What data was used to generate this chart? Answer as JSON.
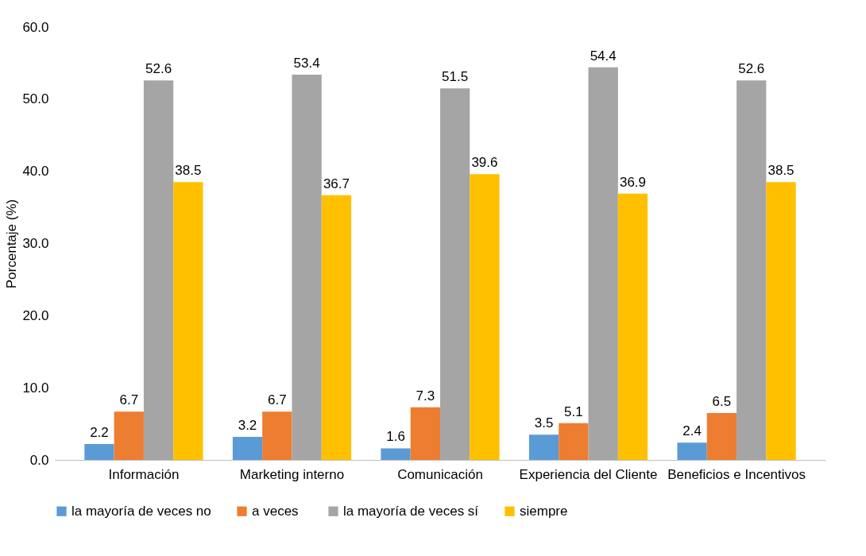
{
  "chart_data": {
    "type": "bar",
    "ylabel": "Porcentaje (%)",
    "categories": [
      "Información",
      "Marketing interno",
      "Comunicación",
      "Experiencia del Cliente",
      "Beneficios e Incentivos"
    ],
    "series": [
      {
        "name": "la mayoría de veces no",
        "color": "#5b9bd5",
        "values": [
          2.2,
          3.2,
          1.6,
          3.5,
          2.4
        ]
      },
      {
        "name": "a  veces",
        "color": "#ed7d31",
        "values": [
          6.7,
          6.7,
          7.3,
          5.1,
          6.5
        ]
      },
      {
        "name": "la mayoría de veces sí",
        "color": "#a5a5a5",
        "values": [
          52.6,
          53.4,
          51.5,
          54.4,
          52.6
        ]
      },
      {
        "name": "siempre",
        "color": "#ffc000",
        "values": [
          38.5,
          36.7,
          39.6,
          36.9,
          38.5
        ]
      }
    ],
    "ylim": [
      0,
      60
    ],
    "yticks": [
      {
        "value": 0,
        "label": "0.0"
      },
      {
        "value": 10,
        "label": "10.0"
      },
      {
        "value": 20,
        "label": "20.0"
      },
      {
        "value": 30,
        "label": "30.0"
      },
      {
        "value": 40,
        "label": "40.0"
      },
      {
        "value": 50,
        "label": "50.0"
      },
      {
        "value": 60,
        "label": "60.0"
      }
    ],
    "data_labels": true,
    "legend": "bottom",
    "grid": false
  }
}
